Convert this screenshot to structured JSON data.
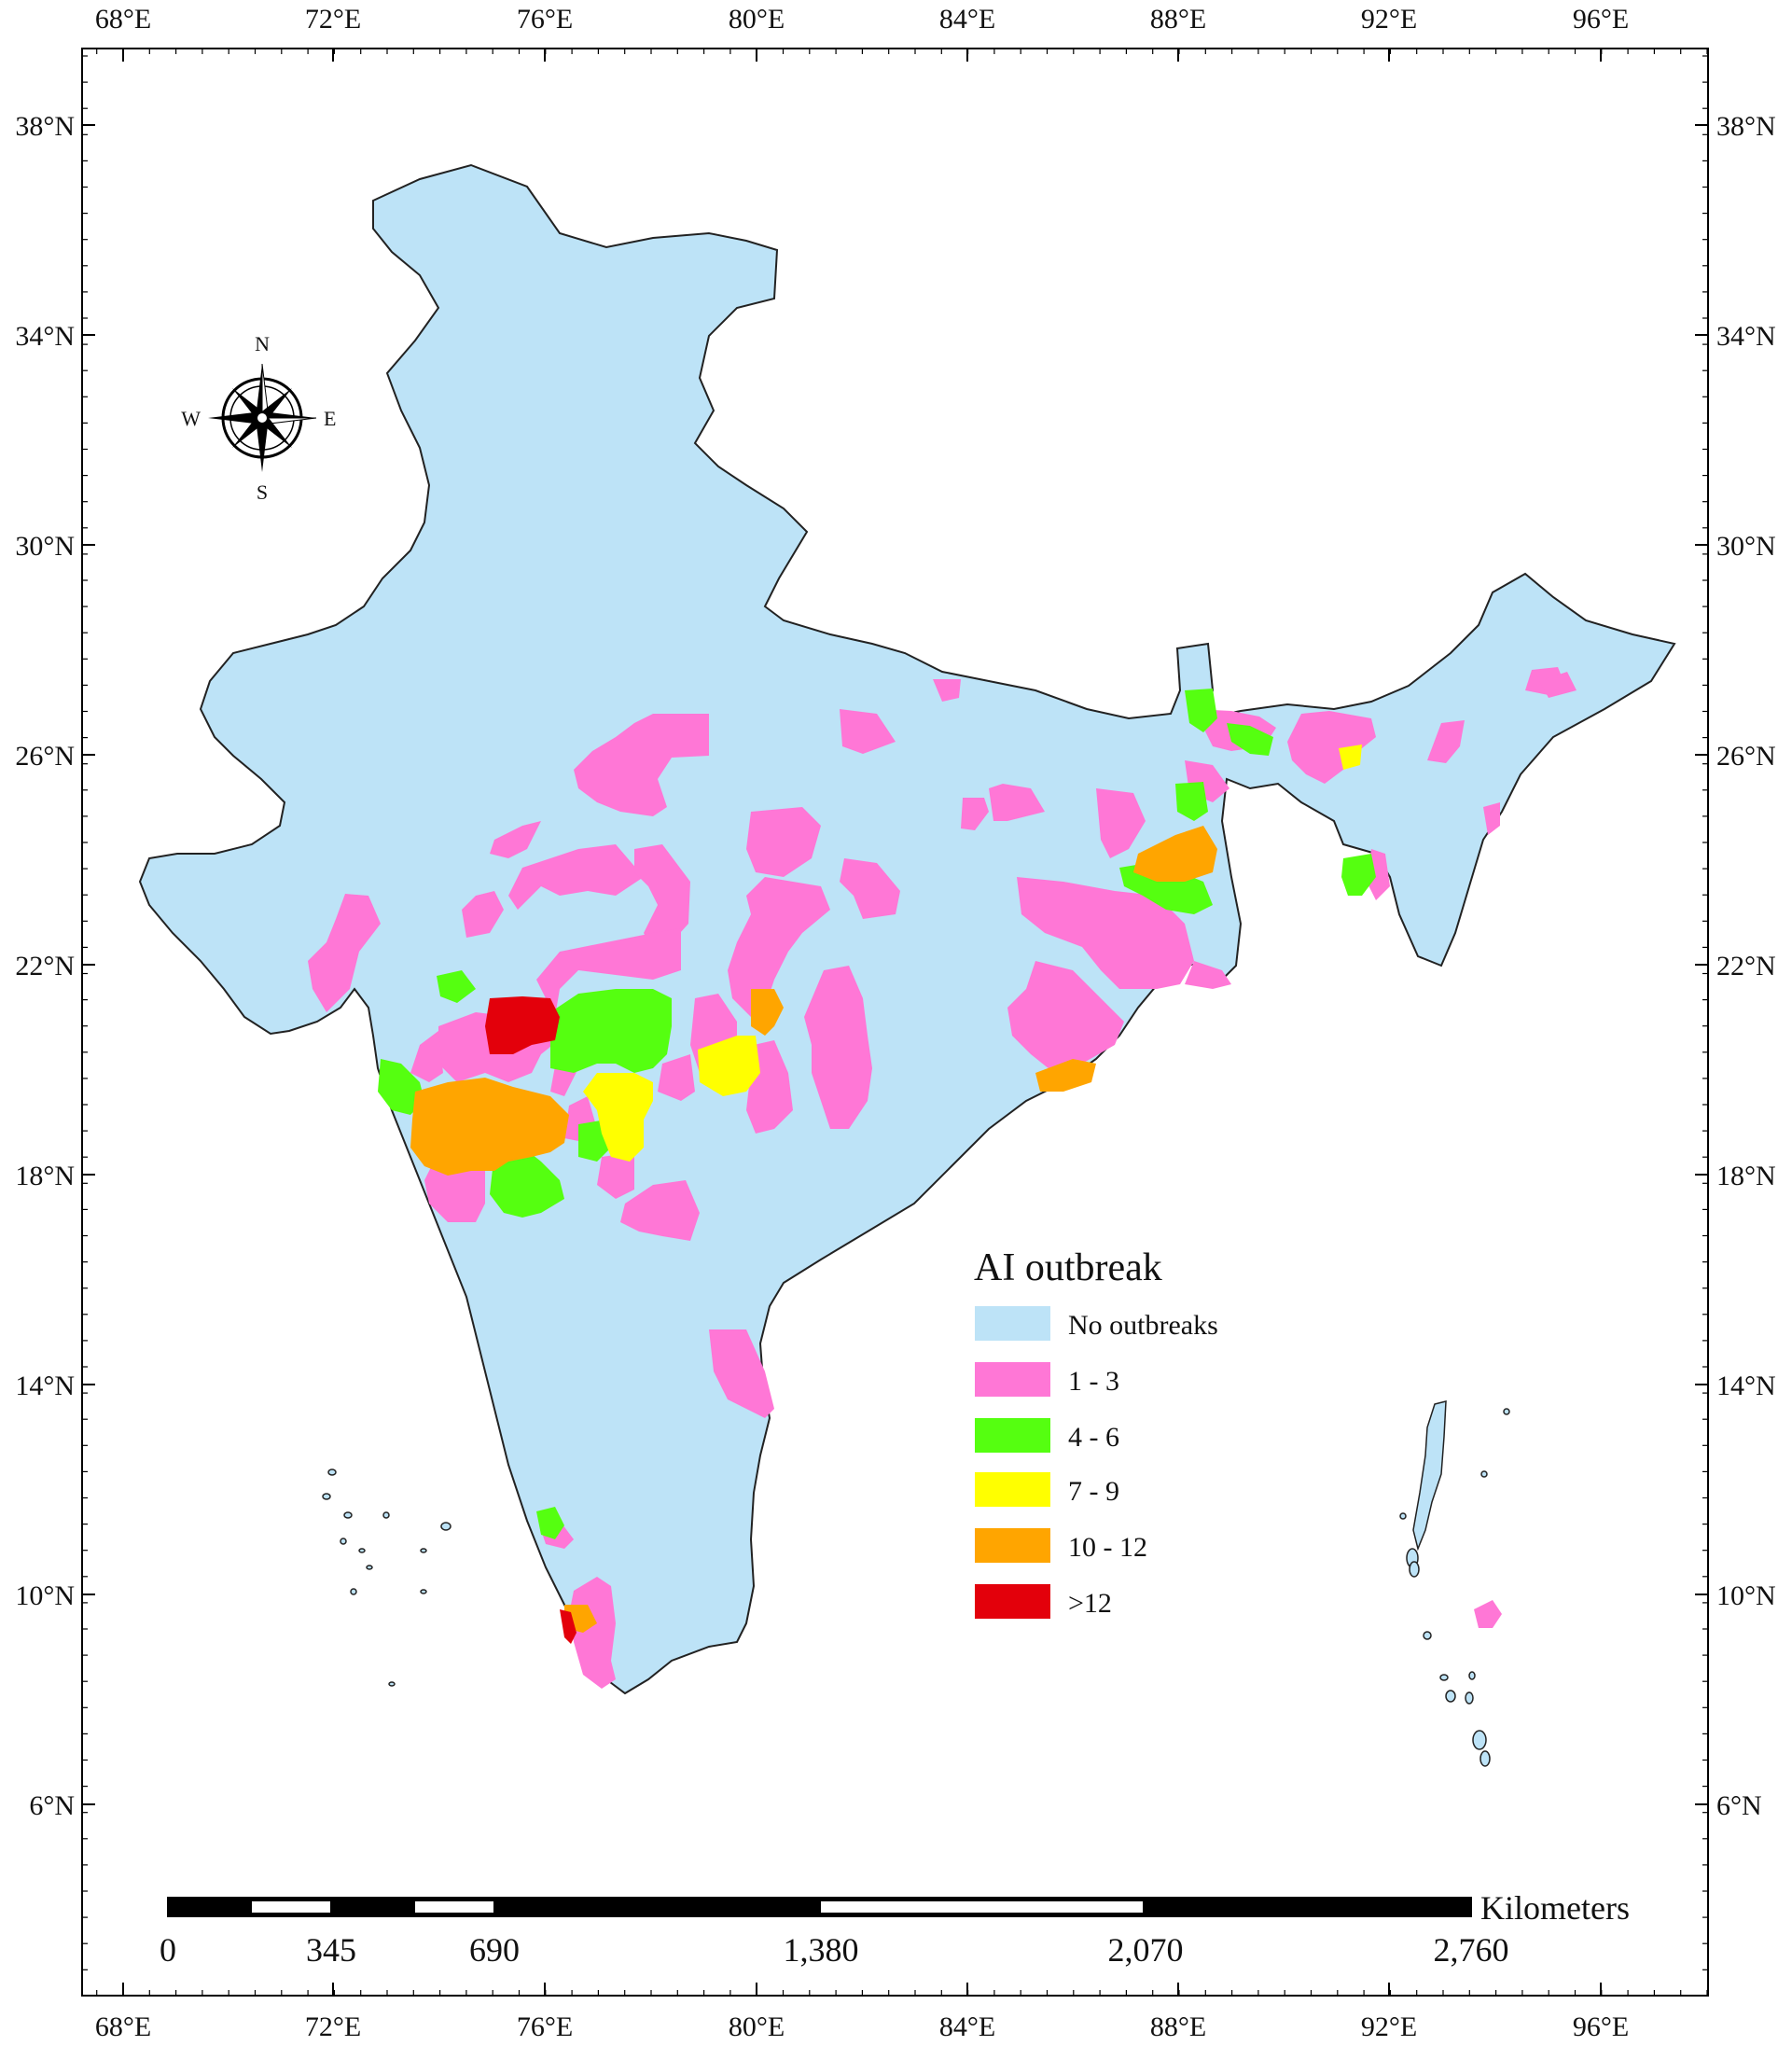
{
  "map": {
    "longitude_labels": [
      "68°E",
      "72°E",
      "76°E",
      "80°E",
      "84°E",
      "88°E",
      "92°E",
      "96°E"
    ],
    "latitude_labels": [
      "38°N",
      "34°N",
      "30°N",
      "26°N",
      "22°N",
      "18°N",
      "14°N",
      "10°N",
      "6°N"
    ],
    "colors": {
      "no_outbreak": "#bde3f7",
      "range_1_3": "#ff77d6",
      "range_4_6": "#55ff10",
      "range_7_9": "#ffff00",
      "range_10_12": "#ffa500",
      "range_over_12": "#e3000b"
    }
  },
  "compass": {
    "north": "N",
    "south": "S",
    "east": "E",
    "west": "W"
  },
  "legend": {
    "title": "AI outbreak",
    "items": [
      {
        "label": "No outbreaks",
        "color": "#bde3f7"
      },
      {
        "label": "1 - 3",
        "color": "#ff77d6"
      },
      {
        "label": "4 - 6",
        "color": "#55ff10"
      },
      {
        "label": "7 - 9",
        "color": "#ffff00"
      },
      {
        "label": "10 - 12",
        "color": "#ffa500"
      },
      {
        "label": ">12",
        "color": "#e3000b"
      }
    ]
  },
  "scale_bar": {
    "unit": "Kilometers",
    "labels": [
      "0",
      "345",
      "690",
      "1,380",
      "2,070",
      "2,760"
    ]
  }
}
